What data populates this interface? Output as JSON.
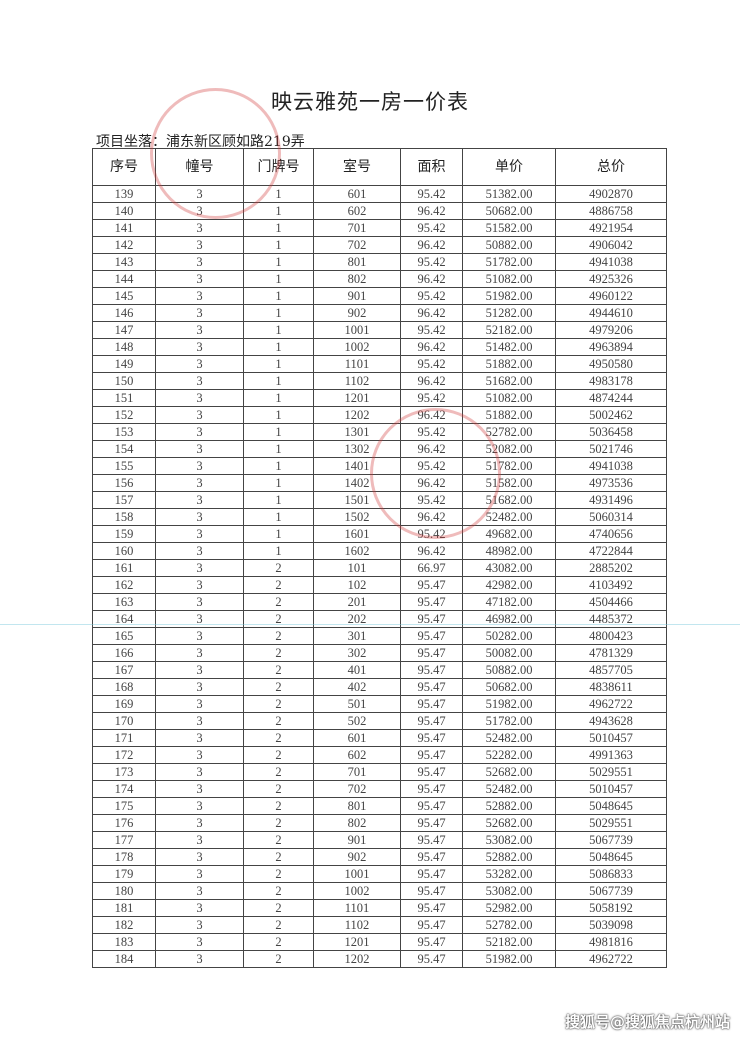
{
  "title": "映云雅苑一房一价表",
  "location": "项目坐落：浦东新区顾如路219弄",
  "headers": [
    "序号",
    "幢号",
    "门牌号",
    "室号",
    "面积",
    "单价",
    "总价"
  ],
  "rows": [
    [
      "139",
      "3",
      "1",
      "601",
      "95.42",
      "51382.00",
      "4902870"
    ],
    [
      "140",
      "3",
      "1",
      "602",
      "96.42",
      "50682.00",
      "4886758"
    ],
    [
      "141",
      "3",
      "1",
      "701",
      "95.42",
      "51582.00",
      "4921954"
    ],
    [
      "142",
      "3",
      "1",
      "702",
      "96.42",
      "50882.00",
      "4906042"
    ],
    [
      "143",
      "3",
      "1",
      "801",
      "95.42",
      "51782.00",
      "4941038"
    ],
    [
      "144",
      "3",
      "1",
      "802",
      "96.42",
      "51082.00",
      "4925326"
    ],
    [
      "145",
      "3",
      "1",
      "901",
      "95.42",
      "51982.00",
      "4960122"
    ],
    [
      "146",
      "3",
      "1",
      "902",
      "96.42",
      "51282.00",
      "4944610"
    ],
    [
      "147",
      "3",
      "1",
      "1001",
      "95.42",
      "52182.00",
      "4979206"
    ],
    [
      "148",
      "3",
      "1",
      "1002",
      "96.42",
      "51482.00",
      "4963894"
    ],
    [
      "149",
      "3",
      "1",
      "1101",
      "95.42",
      "51882.00",
      "4950580"
    ],
    [
      "150",
      "3",
      "1",
      "1102",
      "96.42",
      "51682.00",
      "4983178"
    ],
    [
      "151",
      "3",
      "1",
      "1201",
      "95.42",
      "51082.00",
      "4874244"
    ],
    [
      "152",
      "3",
      "1",
      "1202",
      "96.42",
      "51882.00",
      "5002462"
    ],
    [
      "153",
      "3",
      "1",
      "1301",
      "95.42",
      "52782.00",
      "5036458"
    ],
    [
      "154",
      "3",
      "1",
      "1302",
      "96.42",
      "52082.00",
      "5021746"
    ],
    [
      "155",
      "3",
      "1",
      "1401",
      "95.42",
      "51782.00",
      "4941038"
    ],
    [
      "156",
      "3",
      "1",
      "1402",
      "96.42",
      "51582.00",
      "4973536"
    ],
    [
      "157",
      "3",
      "1",
      "1501",
      "95.42",
      "51682.00",
      "4931496"
    ],
    [
      "158",
      "3",
      "1",
      "1502",
      "96.42",
      "52482.00",
      "5060314"
    ],
    [
      "159",
      "3",
      "1",
      "1601",
      "95.42",
      "49682.00",
      "4740656"
    ],
    [
      "160",
      "3",
      "1",
      "1602",
      "96.42",
      "48982.00",
      "4722844"
    ],
    [
      "161",
      "3",
      "2",
      "101",
      "66.97",
      "43082.00",
      "2885202"
    ],
    [
      "162",
      "3",
      "2",
      "102",
      "95.47",
      "42982.00",
      "4103492"
    ],
    [
      "163",
      "3",
      "2",
      "201",
      "95.47",
      "47182.00",
      "4504466"
    ],
    [
      "164",
      "3",
      "2",
      "202",
      "95.47",
      "46982.00",
      "4485372"
    ],
    [
      "165",
      "3",
      "2",
      "301",
      "95.47",
      "50282.00",
      "4800423"
    ],
    [
      "166",
      "3",
      "2",
      "302",
      "95.47",
      "50082.00",
      "4781329"
    ],
    [
      "167",
      "3",
      "2",
      "401",
      "95.47",
      "50882.00",
      "4857705"
    ],
    [
      "168",
      "3",
      "2",
      "402",
      "95.47",
      "50682.00",
      "4838611"
    ],
    [
      "169",
      "3",
      "2",
      "501",
      "95.47",
      "51982.00",
      "4962722"
    ],
    [
      "170",
      "3",
      "2",
      "502",
      "95.47",
      "51782.00",
      "4943628"
    ],
    [
      "171",
      "3",
      "2",
      "601",
      "95.47",
      "52482.00",
      "5010457"
    ],
    [
      "172",
      "3",
      "2",
      "602",
      "95.47",
      "52282.00",
      "4991363"
    ],
    [
      "173",
      "3",
      "2",
      "701",
      "95.47",
      "52682.00",
      "5029551"
    ],
    [
      "174",
      "3",
      "2",
      "702",
      "95.47",
      "52482.00",
      "5010457"
    ],
    [
      "175",
      "3",
      "2",
      "801",
      "95.47",
      "52882.00",
      "5048645"
    ],
    [
      "176",
      "3",
      "2",
      "802",
      "95.47",
      "52682.00",
      "5029551"
    ],
    [
      "177",
      "3",
      "2",
      "901",
      "95.47",
      "53082.00",
      "5067739"
    ],
    [
      "178",
      "3",
      "2",
      "902",
      "95.47",
      "52882.00",
      "5048645"
    ],
    [
      "179",
      "3",
      "2",
      "1001",
      "95.47",
      "53282.00",
      "5086833"
    ],
    [
      "180",
      "3",
      "2",
      "1002",
      "95.47",
      "53082.00",
      "5067739"
    ],
    [
      "181",
      "3",
      "2",
      "1101",
      "95.47",
      "52982.00",
      "5058192"
    ],
    [
      "182",
      "3",
      "2",
      "1102",
      "95.47",
      "52782.00",
      "5039098"
    ],
    [
      "183",
      "3",
      "2",
      "1201",
      "95.47",
      "52182.00",
      "4981816"
    ],
    [
      "184",
      "3",
      "2",
      "1202",
      "95.47",
      "51982.00",
      "4962722"
    ]
  ],
  "watermark": "搜狐号@搜狐焦点杭州站",
  "stamp_color": "#d23c3c"
}
